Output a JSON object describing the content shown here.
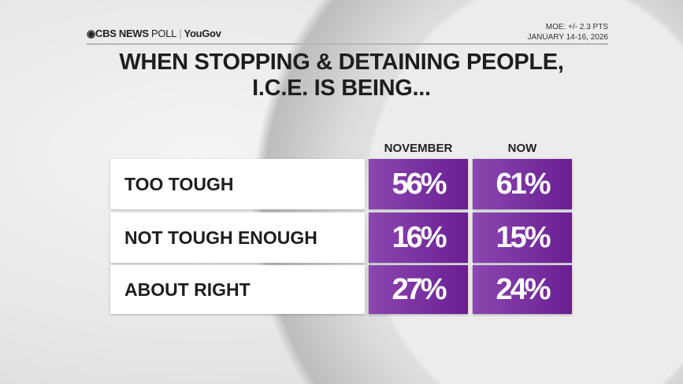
{
  "header": {
    "brand": "CBS NEWS",
    "brand_poll": "POLL",
    "partner": "YouGov",
    "moe": "MOE: +/- 2.3 PTS",
    "dates": "JANUARY 14-16, 2026"
  },
  "title_line1": "WHEN STOPPING & DETAINING PEOPLE,",
  "title_line2": "I.C.E. IS BEING...",
  "chart_data": {
    "type": "table",
    "title": "WHEN STOPPING & DETAINING PEOPLE, I.C.E. IS BEING...",
    "columns": [
      "NOVEMBER",
      "NOW"
    ],
    "rows": [
      {
        "label": "TOO TOUGH",
        "values": [
          "56%",
          "61%"
        ]
      },
      {
        "label": "NOT TOUGH ENOUGH",
        "values": [
          "16%",
          "15%"
        ]
      },
      {
        "label": "ABOUT RIGHT",
        "values": [
          "27%",
          "24%"
        ]
      }
    ]
  },
  "colors": {
    "cell": "#7a32a3"
  }
}
